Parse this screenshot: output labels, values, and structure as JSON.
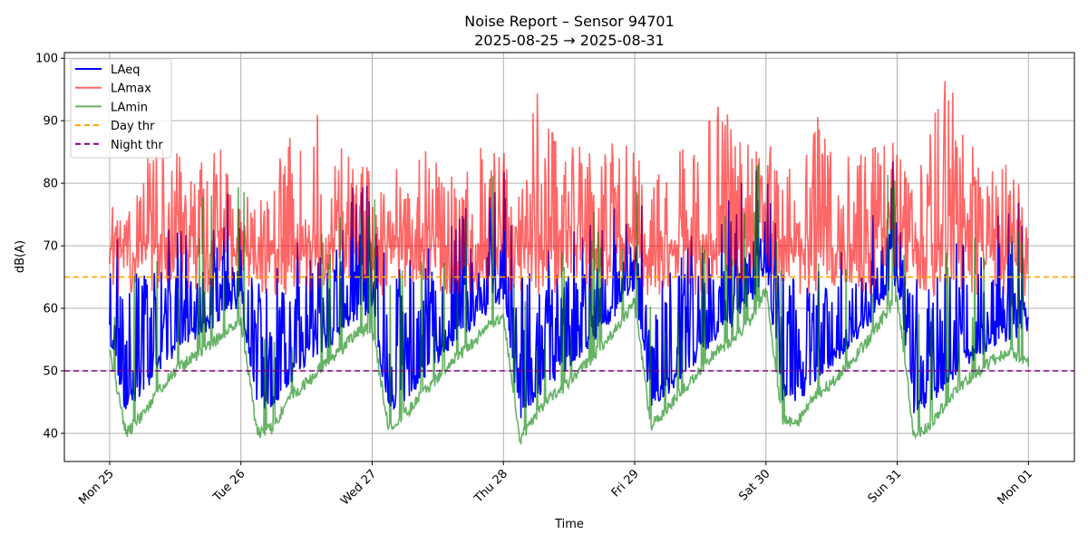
{
  "chart_data": {
    "type": "line",
    "title": "Noise Report – Sensor 94701",
    "subtitle": "2025-08-25 → 2025-08-31",
    "xlabel": "Time",
    "ylabel": "dB(A)",
    "ylim": [
      35.5,
      100.9
    ],
    "xlim_days": [
      -0.345,
      7.35
    ],
    "grid": true,
    "legend_position": "top-left",
    "y_ticks": [
      40,
      50,
      60,
      70,
      80,
      90,
      100
    ],
    "x_ticks": [
      "Mon 25",
      "Tue 26",
      "Wed 27",
      "Thu 28",
      "Fri 29",
      "Sat 30",
      "Sun 31",
      "Mon 01"
    ],
    "x_sample_hours": 3,
    "series": [
      {
        "name": "LAeq",
        "color": "#0000ff",
        "values": [
          55,
          43,
          46,
          50,
          52,
          54,
          56,
          58,
          60,
          43,
          44,
          48,
          51,
          53,
          55,
          58,
          59,
          43,
          45,
          48,
          51,
          54,
          56,
          59,
          61,
          42,
          45,
          48,
          50,
          53,
          56,
          59,
          63,
          44,
          46,
          49,
          52,
          55,
          57,
          60,
          65,
          45,
          45,
          48,
          50,
          53,
          56,
          60,
          64,
          43,
          44,
          47,
          50,
          52,
          54,
          55,
          56
        ]
      },
      {
        "name": "LAmax",
        "color": "#ff6666",
        "values": [
          78,
          74,
          84,
          87,
          86,
          82,
          85,
          86,
          80,
          76,
          86,
          88,
          86,
          95,
          87,
          84,
          82,
          78,
          88,
          87,
          86,
          85,
          87,
          86,
          85,
          78,
          97,
          88,
          86,
          86,
          85,
          89,
          88,
          80,
          84,
          86,
          88,
          97,
          92,
          90,
          89,
          80,
          86,
          93,
          88,
          90,
          90,
          87,
          88,
          80,
          93,
          98,
          92,
          86,
          84,
          84,
          72
        ]
      },
      {
        "name": "LAmin",
        "color": "#66b366",
        "values": [
          52,
          39,
          42,
          46,
          49,
          51,
          53,
          55,
          57,
          39,
          40,
          45,
          47,
          50,
          52,
          55,
          56,
          40,
          42,
          45,
          48,
          51,
          53,
          56,
          58,
          38,
          42,
          45,
          47,
          50,
          53,
          56,
          60,
          40,
          43,
          46,
          49,
          52,
          54,
          57,
          62,
          41,
          41,
          45,
          47,
          50,
          53,
          57,
          61,
          39,
          40,
          44,
          47,
          49,
          51,
          52,
          50
        ]
      }
    ],
    "thresholds": [
      {
        "name": "Day thr",
        "value": 65,
        "color": "#ffa500"
      },
      {
        "name": "Night thr",
        "value": 50,
        "color": "#800080"
      }
    ]
  }
}
